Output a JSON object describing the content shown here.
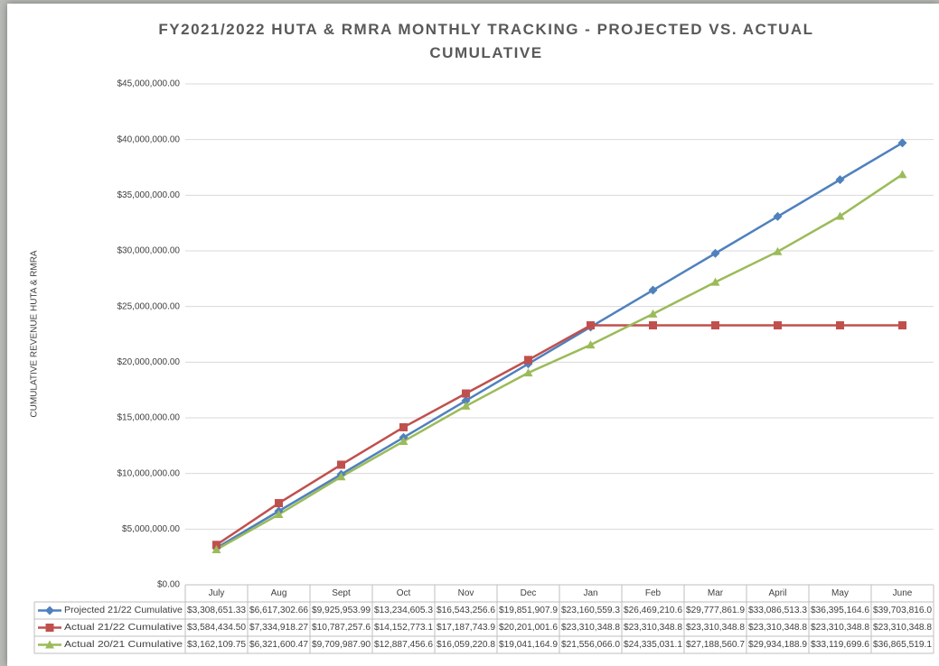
{
  "chart_data": {
    "type": "line",
    "title": "FY2021/2022 HUTA & RMRA MONTHLY TRACKING - PROJECTED VS. ACTUAL CUMULATIVE",
    "y_label": "CUMULATIVE REVENUE HUTA & RMRA",
    "categories": [
      "July",
      "Aug",
      "Sept",
      "Oct",
      "Nov",
      "Dec",
      "Jan",
      "Feb",
      "Mar",
      "April",
      "May",
      "June"
    ],
    "ylim": [
      0,
      45000000
    ],
    "yticks": [
      {
        "value": 0,
        "label": "$0.00"
      },
      {
        "value": 5000000,
        "label": "$5,000,000.00"
      },
      {
        "value": 10000000,
        "label": "$10,000,000.00"
      },
      {
        "value": 15000000,
        "label": "$15,000,000.00"
      },
      {
        "value": 20000000,
        "label": "$20,000,000.00"
      },
      {
        "value": 25000000,
        "label": "$25,000,000.00"
      },
      {
        "value": 30000000,
        "label": "$30,000,000.00"
      },
      {
        "value": 35000000,
        "label": "$35,000,000.00"
      },
      {
        "value": 40000000,
        "label": "$40,000,000.00"
      },
      {
        "value": 45000000,
        "label": "$45,000,000.00"
      }
    ],
    "grid": true,
    "series": [
      {
        "name": "Projected 21/22 Cumulative",
        "color": "#4f81bd",
        "marker": "diamond",
        "values": [
          3308651.33,
          6617302.66,
          9925953.99,
          13234605.3,
          16543256.6,
          19851907.9,
          23160559.3,
          26469210.6,
          29777861.9,
          33086513.3,
          36395164.6,
          39703816.0
        ],
        "value_labels": [
          "$3,308,651.33",
          "$6,617,302.66",
          "$9,925,953.99",
          "$13,234,605.3",
          "$16,543,256.6",
          "$19,851,907.9",
          "$23,160,559.3",
          "$26,469,210.6",
          "$29,777,861.9",
          "$33,086,513.3",
          "$36,395,164.6",
          "$39,703,816.0"
        ]
      },
      {
        "name": "Actual 21/22 Cumulative",
        "color": "#c0504d",
        "marker": "square",
        "values": [
          3584434.5,
          7334918.27,
          10787257.6,
          14152773.1,
          17187743.9,
          20201001.6,
          23310348.8,
          23310348.8,
          23310348.8,
          23310348.8,
          23310348.8,
          23310348.8
        ],
        "value_labels": [
          "$3,584,434.50",
          "$7,334,918.27",
          "$10,787,257.6",
          "$14,152,773.1",
          "$17,187,743.9",
          "$20,201,001.6",
          "$23,310,348.8",
          "$23,310,348.8",
          "$23,310,348.8",
          "$23,310,348.8",
          "$23,310,348.8",
          "$23,310,348.8"
        ]
      },
      {
        "name": "Actual 20/21 Cumulative",
        "color": "#9bbb59",
        "marker": "triangle",
        "values": [
          3162109.75,
          6321600.47,
          9709987.9,
          12887456.6,
          16059220.8,
          19041164.9,
          21556066.0,
          24335031.1,
          27188560.7,
          29934188.9,
          33119699.6,
          36865519.1
        ],
        "value_labels": [
          "$3,162,109.75",
          "$6,321,600.47",
          "$9,709,987.90",
          "$12,887,456.6",
          "$16,059,220.8",
          "$19,041,164.9",
          "$21,556,066.0",
          "$24,335,031.1",
          "$27,188,560.7",
          "$29,934,188.9",
          "$33,119,699.6",
          "$36,865,519.1"
        ]
      }
    ]
  }
}
